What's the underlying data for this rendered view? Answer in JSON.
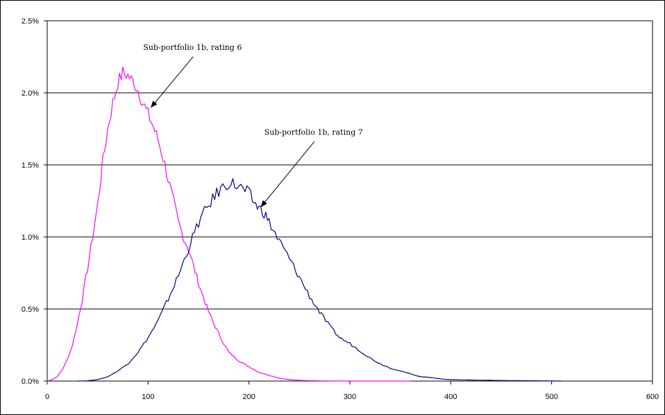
{
  "chart_data": {
    "type": "line",
    "title": "",
    "xlabel": "",
    "ylabel": "",
    "xlim": [
      0,
      600
    ],
    "ylim": [
      0,
      0.025
    ],
    "x_ticks": [
      0,
      100,
      200,
      300,
      400,
      500,
      600
    ],
    "x_tick_labels": [
      "0",
      "100",
      "200",
      "300",
      "400",
      "500",
      "600"
    ],
    "y_ticks": [
      0,
      0.005,
      0.01,
      0.015,
      0.02,
      0.025
    ],
    "y_tick_labels": [
      "0.0%",
      "0.5%",
      "1.0%",
      "1.5%",
      "2.0%",
      "2.5%"
    ],
    "grid": "horizontal",
    "legend": "none",
    "series": [
      {
        "color": "#ff00ff",
        "x": [
          0,
          5,
          10,
          15,
          20,
          25,
          30,
          35,
          40,
          45,
          50,
          55,
          60,
          65,
          70,
          75,
          80,
          85,
          90,
          95,
          100,
          105,
          110,
          115,
          120,
          125,
          130,
          135,
          140,
          145,
          150,
          155,
          160,
          165,
          170,
          175,
          180,
          185,
          190,
          195,
          200,
          210,
          220,
          230,
          240,
          250,
          260,
          270,
          280,
          300,
          320,
          340,
          360
        ],
        "y": [
          0,
          0.0001,
          0.0003,
          0.0008,
          0.0015,
          0.0025,
          0.004,
          0.0058,
          0.0078,
          0.01,
          0.0122,
          0.0152,
          0.0175,
          0.0193,
          0.0207,
          0.0214,
          0.0212,
          0.0208,
          0.0202,
          0.0193,
          0.0185,
          0.0177,
          0.0167,
          0.0155,
          0.014,
          0.0125,
          0.011,
          0.01,
          0.0092,
          0.008,
          0.0068,
          0.0058,
          0.0048,
          0.004,
          0.0033,
          0.0026,
          0.002,
          0.0017,
          0.0014,
          0.0012,
          0.001,
          0.0006,
          0.0004,
          0.0002,
          0.0001,
          5e-05,
          3e-05,
          2e-05,
          1e-05,
          0,
          0,
          0,
          0
        ]
      },
      {
        "color": "#000080",
        "x": [
          30,
          40,
          50,
          60,
          70,
          80,
          90,
          100,
          110,
          120,
          130,
          140,
          150,
          160,
          170,
          180,
          190,
          200,
          205,
          210,
          215,
          220,
          230,
          240,
          250,
          260,
          270,
          280,
          290,
          300,
          310,
          320,
          330,
          340,
          350,
          360,
          370,
          380,
          390,
          400,
          420,
          440,
          460,
          480,
          500,
          510
        ],
        "y": [
          0,
          2e-05,
          0.0001,
          0.0003,
          0.0007,
          0.0012,
          0.002,
          0.003,
          0.0042,
          0.0057,
          0.0073,
          0.0092,
          0.011,
          0.0122,
          0.0132,
          0.0138,
          0.0135,
          0.013,
          0.0124,
          0.012,
          0.0117,
          0.011,
          0.0097,
          0.0085,
          0.0072,
          0.0059,
          0.0048,
          0.0038,
          0.003,
          0.0026,
          0.0021,
          0.0016,
          0.0012,
          0.0009,
          0.0007,
          0.0005,
          0.0003,
          0.00025,
          0.00015,
          0.0001,
          7e-05,
          5e-05,
          3e-05,
          2e-05,
          1e-05,
          0
        ]
      }
    ],
    "annotations": [
      {
        "text": "Sub-portfolio 1b, rating 6",
        "target_x": 103,
        "target_y": 0.019,
        "text_x": 142,
        "text_y": 0.0228
      },
      {
        "text": "Sub-portfolio 1b, rating 7",
        "target_x": 212,
        "target_y": 0.0121,
        "text_x": 262,
        "text_y": 0.0169
      }
    ]
  }
}
